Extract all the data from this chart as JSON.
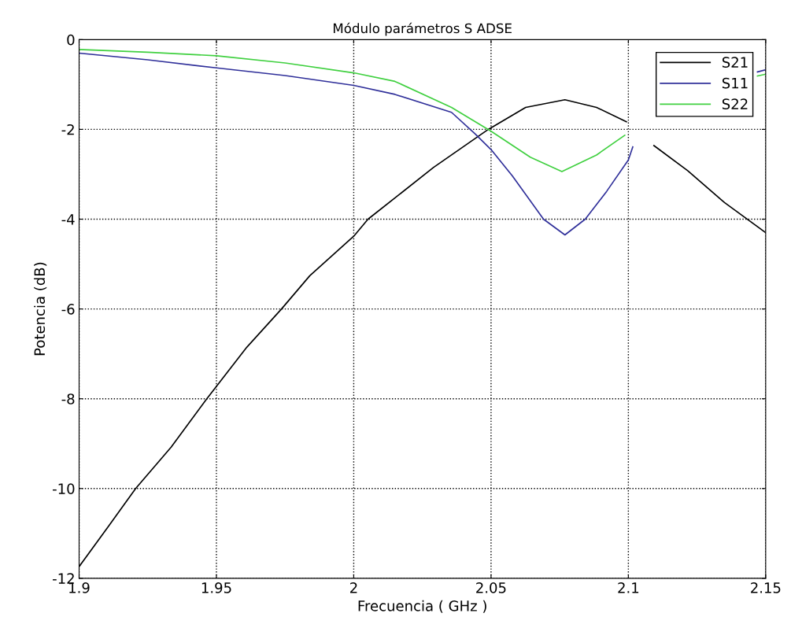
{
  "chart_data": {
    "type": "line",
    "title": "Módulo parámetros S ADSE",
    "xlabel": "Frecuencia ( GHz )",
    "ylabel": "Potencia (dB)",
    "xlim": [
      1.9,
      2.15
    ],
    "xticks": [
      1.9,
      1.95,
      2,
      2.05,
      2.1,
      2.15
    ],
    "ylim": [
      -12,
      0
    ],
    "yticks": [
      -12,
      -10,
      -8,
      -6,
      -4,
      -2,
      0
    ],
    "grid": true,
    "legend": "top right",
    "line_style": "solid",
    "marker": "none",
    "series": [
      {
        "name": "S21",
        "color": "#000000",
        "x": [
          1.9,
          1.9106,
          1.9206,
          1.9335,
          1.9465,
          1.9611,
          1.9737,
          1.984,
          2.0,
          2.0052,
          2.029,
          2.049,
          2.0626,
          2.0769,
          2.0884,
          2.0993,
          2.1052,
          2.1093,
          2.1216,
          2.135,
          2.15
        ],
        "values": [
          -11.74,
          -10.85,
          -10,
          -9.08,
          -8,
          -6.85,
          -6,
          -5.26,
          -4.38,
          -4.0,
          -2.85,
          -2.0,
          -1.51,
          -1.34,
          -1.51,
          -1.83,
          null,
          -2.36,
          -2.92,
          -3.63,
          -4.3
        ]
      },
      {
        "name": "S11",
        "color": "#30309a",
        "x": [
          1.9,
          1.925,
          1.95,
          1.975,
          2.0,
          2.015,
          2.0356,
          2.0442,
          2.05,
          2.0577,
          2.0691,
          2.0769,
          2.0843,
          2.0921,
          2.1,
          2.1016,
          2.12,
          2.147,
          2.15
        ],
        "values": [
          -0.3,
          -0.45,
          -0.63,
          -0.8,
          -1.02,
          -1.22,
          -1.62,
          -2.1,
          -2.45,
          -3.03,
          -4.0,
          -4.35,
          -4.0,
          -3.38,
          -2.68,
          -2.39,
          null,
          -0.72,
          -0.67
        ]
      },
      {
        "name": "S22",
        "color": "#40d040",
        "x": [
          1.9,
          1.925,
          1.95,
          1.975,
          2.0,
          2.015,
          2.0356,
          2.05,
          2.0643,
          2.0758,
          2.0884,
          2.0987,
          2.12,
          2.147,
          2.15
        ],
        "values": [
          -0.22,
          -0.28,
          -0.36,
          -0.52,
          -0.74,
          -0.93,
          -1.51,
          -2.04,
          -2.62,
          -2.94,
          -2.57,
          -2.13,
          null,
          -0.81,
          -0.77
        ]
      }
    ]
  }
}
